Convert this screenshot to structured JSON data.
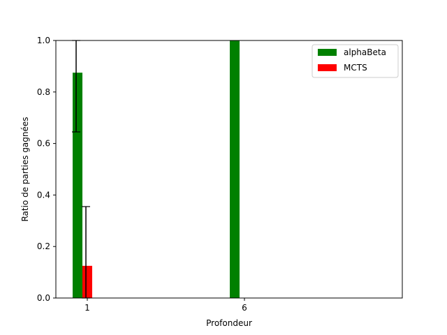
{
  "chart_data": {
    "type": "bar",
    "xlabel": "Profondeur",
    "ylabel": "Ratio de parties gagnées",
    "x_ticks": [
      "1",
      "6"
    ],
    "ylim": [
      0,
      1
    ],
    "y_ticks": [
      "0.0",
      "0.2",
      "0.4",
      "0.6",
      "0.8",
      "1.0"
    ],
    "grid": false,
    "legend_position": "top-right",
    "series": [
      {
        "name": "alphaBeta",
        "color": "#008000",
        "values": [
          0.875,
          1.0
        ],
        "error_bars": [
          {
            "low": 0.645,
            "high": 1.0
          },
          null
        ]
      },
      {
        "name": "MCTS",
        "color": "#ff0000",
        "values": [
          0.125,
          0.0
        ],
        "error_bars": [
          {
            "low": 0.0,
            "high": 0.355
          },
          null
        ]
      },
      {
        "name": "",
        "color": "#0000ff",
        "values": [
          0.0,
          0.0
        ],
        "error_bars": [
          null,
          null
        ]
      }
    ]
  }
}
